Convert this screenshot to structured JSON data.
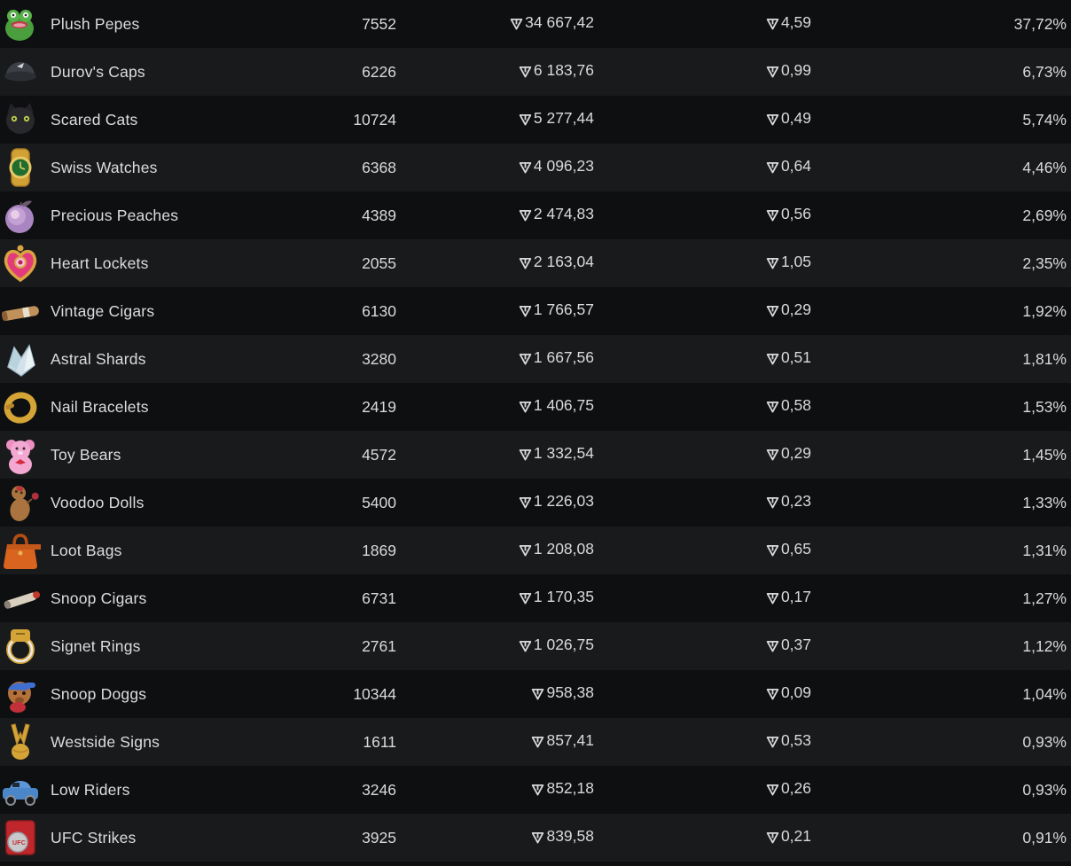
{
  "colors": {
    "row_dark": "#0e0f10",
    "row_light": "#191a1b",
    "text_primary": "#dcdddd",
    "background": "#0a0b0c"
  },
  "currency": {
    "icon": "ton-icon"
  },
  "table": {
    "rows": [
      {
        "name": "Plush Pepes",
        "icon": "plush-pepe",
        "count": "7552",
        "volume": "34 667,42",
        "price": "4,59",
        "percent": "37,72%"
      },
      {
        "name": "Durov's Caps",
        "icon": "durov-cap",
        "count": "6226",
        "volume": "6 183,76",
        "price": "0,99",
        "percent": "6,73%"
      },
      {
        "name": "Scared Cats",
        "icon": "scared-cat",
        "count": "10724",
        "volume": "5 277,44",
        "price": "0,49",
        "percent": "5,74%"
      },
      {
        "name": "Swiss Watches",
        "icon": "swiss-watch",
        "count": "6368",
        "volume": "4 096,23",
        "price": "0,64",
        "percent": "4,46%"
      },
      {
        "name": "Precious Peaches",
        "icon": "precious-peach",
        "count": "4389",
        "volume": "2 474,83",
        "price": "0,56",
        "percent": "2,69%"
      },
      {
        "name": "Heart Lockets",
        "icon": "heart-locket",
        "count": "2055",
        "volume": "2 163,04",
        "price": "1,05",
        "percent": "2,35%"
      },
      {
        "name": "Vintage Cigars",
        "icon": "vintage-cigar",
        "count": "6130",
        "volume": "1 766,57",
        "price": "0,29",
        "percent": "1,92%"
      },
      {
        "name": "Astral Shards",
        "icon": "astral-shard",
        "count": "3280",
        "volume": "1 667,56",
        "price": "0,51",
        "percent": "1,81%"
      },
      {
        "name": "Nail Bracelets",
        "icon": "nail-bracelet",
        "count": "2419",
        "volume": "1 406,75",
        "price": "0,58",
        "percent": "1,53%"
      },
      {
        "name": "Toy Bears",
        "icon": "toy-bear",
        "count": "4572",
        "volume": "1 332,54",
        "price": "0,29",
        "percent": "1,45%"
      },
      {
        "name": "Voodoo Dolls",
        "icon": "voodoo-doll",
        "count": "5400",
        "volume": "1 226,03",
        "price": "0,23",
        "percent": "1,33%"
      },
      {
        "name": "Loot Bags",
        "icon": "loot-bag",
        "count": "1869",
        "volume": "1 208,08",
        "price": "0,65",
        "percent": "1,31%"
      },
      {
        "name": "Snoop Cigars",
        "icon": "snoop-cigar",
        "count": "6731",
        "volume": "1 170,35",
        "price": "0,17",
        "percent": "1,27%"
      },
      {
        "name": "Signet Rings",
        "icon": "signet-ring",
        "count": "2761",
        "volume": "1 026,75",
        "price": "0,37",
        "percent": "1,12%"
      },
      {
        "name": "Snoop Doggs",
        "icon": "snoop-dogg",
        "count": "10344",
        "volume": "958,38",
        "price": "0,09",
        "percent": "1,04%"
      },
      {
        "name": "Westside Signs",
        "icon": "westside-sign",
        "count": "1611",
        "volume": "857,41",
        "price": "0,53",
        "percent": "0,93%"
      },
      {
        "name": "Low Riders",
        "icon": "low-rider",
        "count": "3246",
        "volume": "852,18",
        "price": "0,26",
        "percent": "0,93%"
      },
      {
        "name": "UFC Strikes",
        "icon": "ufc-strike",
        "count": "3925",
        "volume": "839,58",
        "price": "0,21",
        "percent": "0,91%"
      }
    ]
  }
}
